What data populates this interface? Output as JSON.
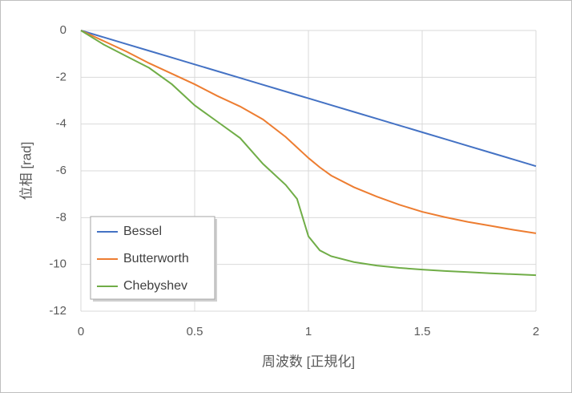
{
  "chart_data": {
    "type": "line",
    "x_label": "周波数 [正規化]",
    "y_label": "位相 [rad]",
    "x": [
      0,
      0.1,
      0.2,
      0.3,
      0.4,
      0.5,
      0.6,
      0.7,
      0.8,
      0.9,
      0.95,
      1.0,
      1.05,
      1.1,
      1.2,
      1.3,
      1.4,
      1.5,
      1.6,
      1.7,
      1.8,
      1.9,
      2.0
    ],
    "series": [
      {
        "name": "Bessel",
        "color": "#4472c4",
        "values": [
          0,
          -0.29,
          -0.58,
          -0.87,
          -1.16,
          -1.45,
          -1.74,
          -2.03,
          -2.32,
          -2.61,
          -2.755,
          -2.9,
          -3.045,
          -3.19,
          -3.48,
          -3.77,
          -4.06,
          -4.35,
          -4.64,
          -4.93,
          -5.22,
          -5.51,
          -5.8
        ]
      },
      {
        "name": "Butterworth",
        "color": "#ed7d31",
        "values": [
          0,
          -0.45,
          -0.9,
          -1.4,
          -1.85,
          -2.3,
          -2.8,
          -3.25,
          -3.8,
          -4.55,
          -5.0,
          -5.45,
          -5.85,
          -6.2,
          -6.7,
          -7.1,
          -7.45,
          -7.75,
          -7.98,
          -8.18,
          -8.35,
          -8.52,
          -8.67
        ]
      },
      {
        "name": "Chebyshev",
        "color": "#70ad47",
        "values": [
          0,
          -0.6,
          -1.1,
          -1.6,
          -2.3,
          -3.2,
          -3.9,
          -4.6,
          -5.7,
          -6.6,
          -7.2,
          -8.8,
          -9.4,
          -9.65,
          -9.9,
          -10.05,
          -10.15,
          -10.22,
          -10.28,
          -10.33,
          -10.38,
          -10.42,
          -10.46
        ]
      }
    ],
    "xlim": [
      0,
      2
    ],
    "xticks": [
      0,
      0.5,
      1,
      1.5,
      2
    ],
    "ylim": [
      -12,
      0
    ],
    "yticks": [
      -12,
      -10,
      -8,
      -6,
      -4,
      -2,
      0
    ],
    "grid": true
  }
}
